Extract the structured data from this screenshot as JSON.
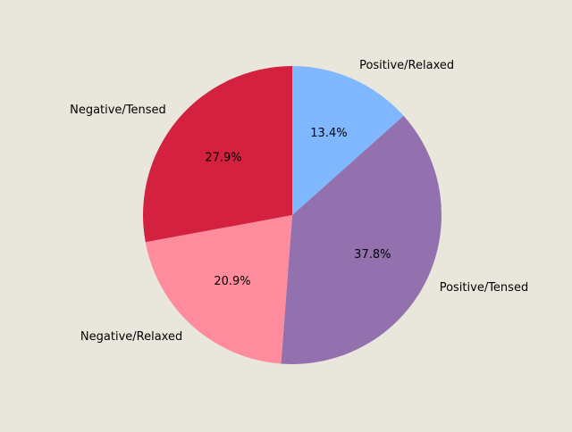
{
  "chart_data": {
    "type": "pie",
    "title": "",
    "slices": [
      {
        "label": "Positive/Relaxed",
        "value": 13.4,
        "pct_label": "13.4%",
        "color": "#80b8ff"
      },
      {
        "label": "Positive/Tensed",
        "value": 37.8,
        "pct_label": "37.8%",
        "color": "#9371ae"
      },
      {
        "label": "Negative/Relaxed",
        "value": 20.9,
        "pct_label": "20.9%",
        "color": "#ff8c9d"
      },
      {
        "label": "Negative/Tensed",
        "value": 27.9,
        "pct_label": "27.9%",
        "color": "#d42140"
      }
    ],
    "start_angle_deg": 90,
    "direction": "clockwise",
    "legend": "none",
    "background": "#e9e7dc"
  }
}
